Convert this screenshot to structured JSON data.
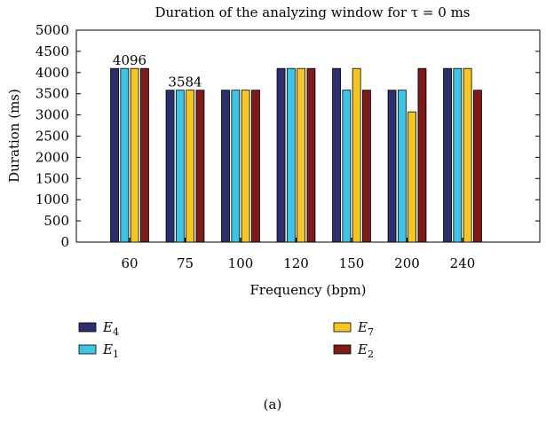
{
  "chart_data": {
    "type": "bar",
    "title": "Duration of the analyzing window for τ = 0 ms",
    "xlabel": "Frequency (bpm)",
    "ylabel": "Duration (ms)",
    "categories": [
      "60",
      "75",
      "100",
      "120",
      "150",
      "200",
      "240"
    ],
    "ylim": [
      0,
      5000
    ],
    "yticks": [
      0,
      500,
      1000,
      1500,
      2000,
      2500,
      3000,
      3500,
      4000,
      4500,
      5000
    ],
    "series": [
      {
        "name": "E4",
        "name_main": "E",
        "name_sub": "4",
        "color": "#2b2f6e",
        "values": [
          4096,
          3584,
          3584,
          4096,
          4096,
          3584,
          4096
        ]
      },
      {
        "name": "E1",
        "name_main": "E",
        "name_sub": "1",
        "color": "#40c4e6",
        "values": [
          4096,
          3584,
          3584,
          4096,
          3584,
          3584,
          4096
        ]
      },
      {
        "name": "E7",
        "name_main": "E",
        "name_sub": "7",
        "color": "#f5c525",
        "values": [
          4096,
          3584,
          3584,
          4096,
          4096,
          3072,
          4096
        ]
      },
      {
        "name": "E2",
        "name_main": "E",
        "name_sub": "2",
        "color": "#7d1a1a",
        "values": [
          4096,
          3584,
          3584,
          4096,
          3584,
          4096,
          3584
        ]
      }
    ],
    "data_labels": [
      {
        "category_index": 0,
        "text": "4096"
      },
      {
        "category_index": 1,
        "text": "3584"
      }
    ],
    "legend_placement": "bottom",
    "grid": false
  },
  "caption": "(a)"
}
